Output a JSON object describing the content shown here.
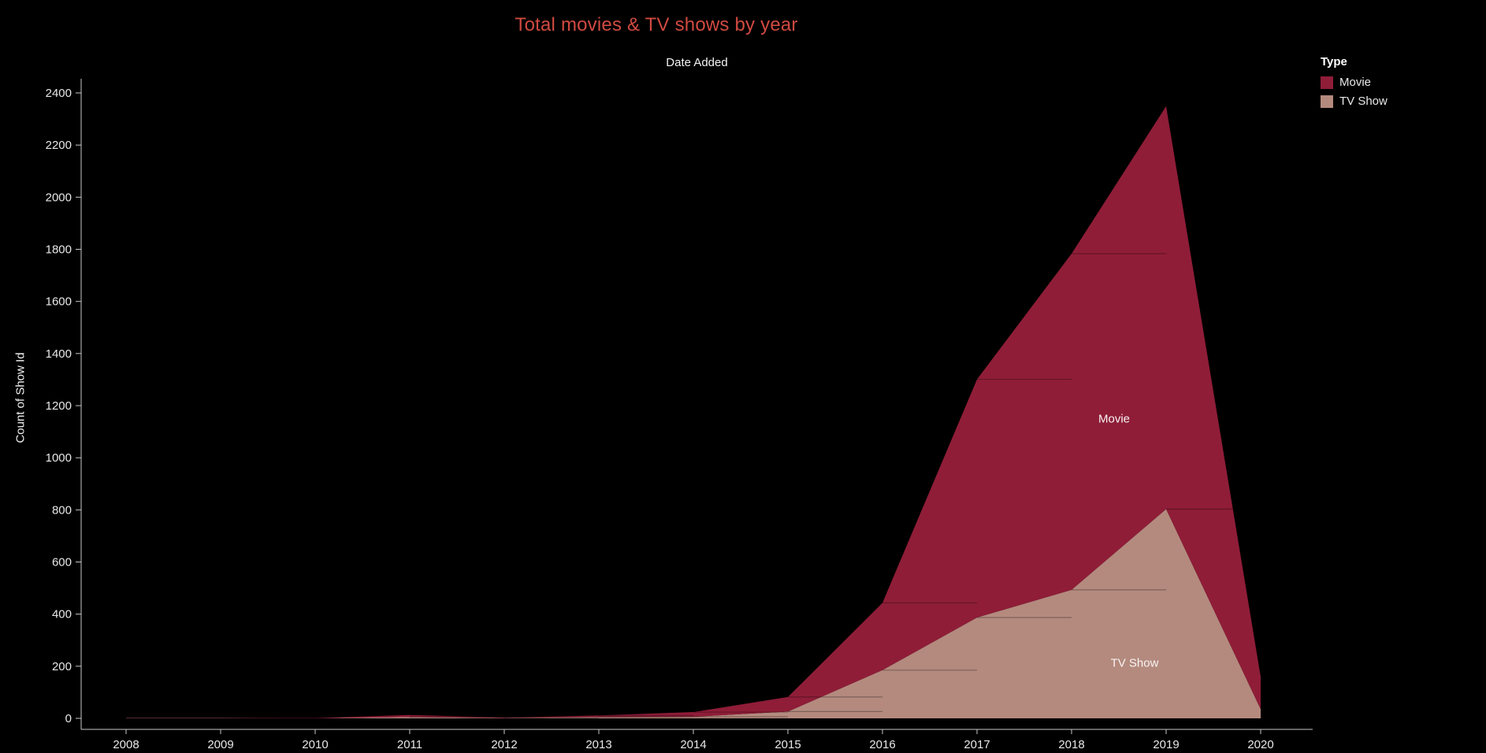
{
  "page": {
    "background": "#000000",
    "title_color": "#d04a41",
    "text_color": "#f2f2f2"
  },
  "legend": {
    "title": "Type",
    "items": [
      {
        "label": "Movie",
        "color": "#8f1d38"
      },
      {
        "label": "TV Show",
        "color": "#b48a7e"
      }
    ]
  },
  "area_labels": {
    "movie": "Movie",
    "tv_show": "TV Show"
  },
  "chart_data": {
    "type": "area",
    "stacked": true,
    "title": "Total movies & TV shows by year",
    "xlabel": "Date Added",
    "ylabel": "Count of Show Id",
    "categories": [
      "2008",
      "2009",
      "2010",
      "2011",
      "2012",
      "2013",
      "2014",
      "2015",
      "2016",
      "2017",
      "2018",
      "2019",
      "2020"
    ],
    "series": [
      {
        "name": "TV Show",
        "color": "#b48a7e",
        "values": [
          1,
          1,
          0,
          5,
          1,
          5,
          6,
          26,
          185,
          387,
          493,
          803,
          35
        ]
      },
      {
        "name": "Movie",
        "color": "#8f1d38",
        "values": [
          1,
          1,
          1,
          8,
          2,
          6,
          18,
          56,
          258,
          914,
          1290,
          1546,
          125
        ]
      }
    ],
    "stack_order": [
      "TV Show",
      "Movie"
    ],
    "stacked_totals": [
      2,
      2,
      1,
      13,
      3,
      11,
      24,
      82,
      443,
      1301,
      1783,
      2349,
      160
    ],
    "ylim": [
      0,
      2400
    ],
    "yticks": [
      0,
      200,
      400,
      600,
      800,
      1000,
      1200,
      1400,
      1600,
      1800,
      2000,
      2200,
      2400
    ],
    "grid": false,
    "legend_title": "Type",
    "legend_position": "top-right",
    "background": "#000000"
  }
}
